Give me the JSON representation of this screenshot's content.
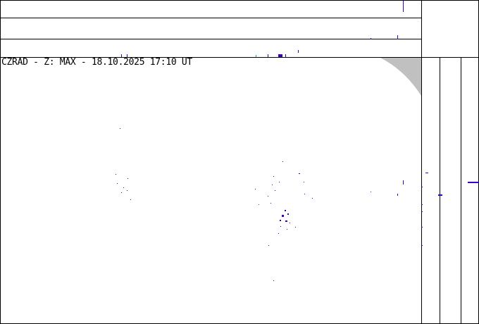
{
  "title": "CZRAD - Z: MAX - 18.10.2025 17:10 UT",
  "colors": {
    "echo_weak": "#3a00c8",
    "echo_cyan": "#00a0e0",
    "echo_green": "#00a000",
    "outside_area": "#c0c0c0",
    "frame": "#000000"
  }
}
